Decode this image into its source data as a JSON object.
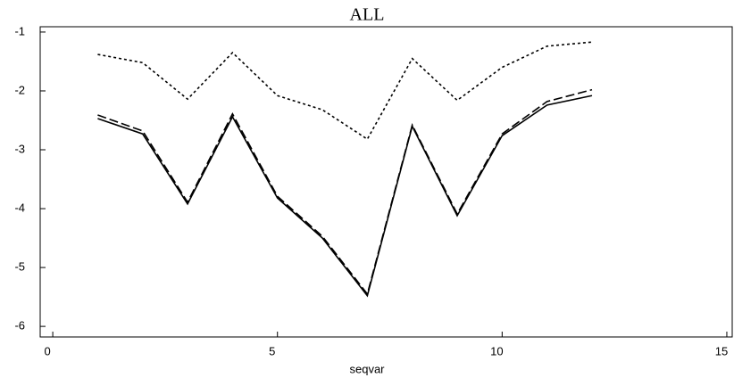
{
  "chart_data": {
    "type": "line",
    "title": "ALL",
    "x_label": "seqvar",
    "x": [
      1,
      2,
      3,
      4,
      5,
      6,
      7,
      8,
      9,
      10,
      11,
      12
    ],
    "series": [
      {
        "color": "#000000",
        "dash": "dotted",
        "values": [
          -1.38,
          -1.52,
          -2.14,
          -1.35,
          -2.08,
          -2.32,
          -2.82,
          -1.45,
          -2.16,
          -1.6,
          -1.24,
          -1.17
        ]
      },
      {
        "color": "#000000",
        "dash": "solid",
        "values": [
          -2.47,
          -2.73,
          -3.92,
          -2.44,
          -3.82,
          -4.5,
          -5.48,
          -2.6,
          -4.12,
          -2.76,
          -2.24,
          -2.08
        ]
      },
      {
        "color": "#000000",
        "dash": "dashed",
        "values": [
          -2.41,
          -2.68,
          -3.89,
          -2.39,
          -3.79,
          -4.47,
          -5.45,
          -2.58,
          -4.09,
          -2.73,
          -2.18,
          -1.98
        ]
      }
    ],
    "xlim": [
      -0.28,
      15.12
    ],
    "xticks": [
      0,
      5,
      10,
      15
    ],
    "ylim": [
      -6.18,
      -0.91
    ],
    "yticks": [
      -6,
      -5,
      -4,
      -3,
      -2,
      -1
    ]
  }
}
